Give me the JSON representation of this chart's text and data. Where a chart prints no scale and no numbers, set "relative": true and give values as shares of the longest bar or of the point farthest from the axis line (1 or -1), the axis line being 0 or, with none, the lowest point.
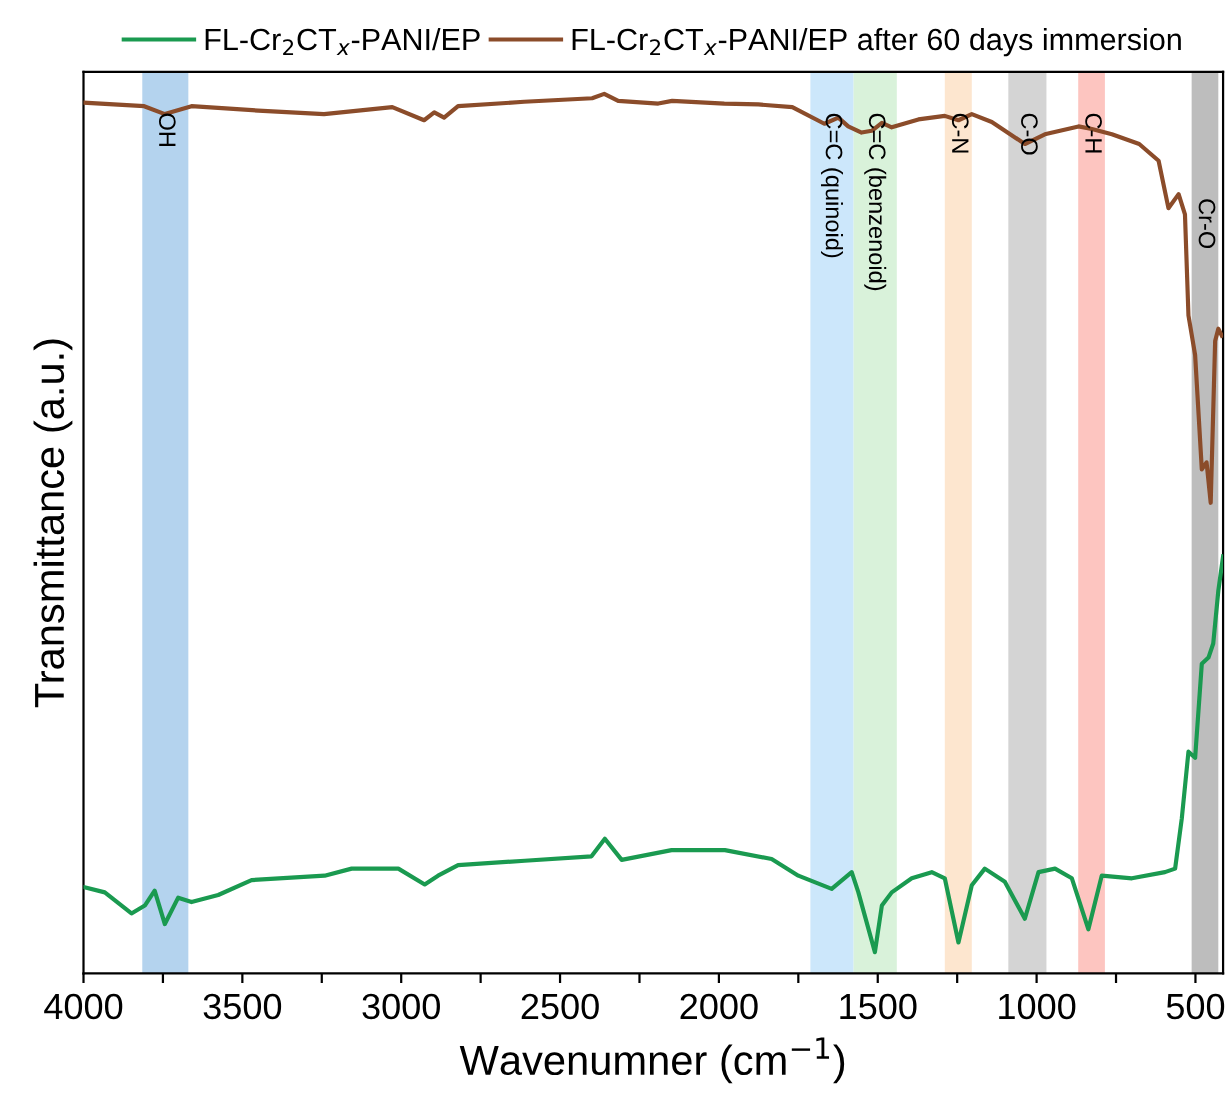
{
  "chart_data": {
    "type": "line",
    "xlabel": "Wavenumner (cm$^{−1}$)",
    "ylabel": "Transmittance (a.u.)",
    "relative": true,
    "legend": "top",
    "grid": false,
    "marker": "none",
    "line_style": "solid",
    "xlim": [
      4000,
      413
    ],
    "xticks": [
      4000,
      {
        "value": 3750,
        "label": null
      },
      3500,
      {
        "value": 3250,
        "label": null
      },
      3000,
      {
        "value": 2750,
        "label": null
      },
      2500,
      {
        "value": 2250,
        "label": null
      },
      2000,
      {
        "value": 1750,
        "label": null
      },
      1500,
      {
        "value": 1250,
        "label": null
      },
      1000,
      {
        "value": 750,
        "label": null
      },
      500
    ],
    "series": [
      {
        "name": "FL-Cr$_{2}$CT$_{x}$-PANI/EP",
        "color": "#1a9a50",
        "x": [
          4000,
          3933,
          3849,
          3807,
          3776,
          3744,
          3702,
          3660,
          3576,
          3471,
          3241,
          3156,
          3009,
          2926,
          2884,
          2821,
          2611,
          2401,
          2359,
          2306,
          2149,
          1981,
          1834,
          1750,
          1645,
          1582,
          1561,
          1509,
          1487,
          1456,
          1393,
          1330,
          1289,
          1246,
          1204,
          1163,
          1100,
          1037,
          994,
          942,
          889,
          837,
          795,
          700,
          596,
          564,
          543,
          522,
          501,
          480,
          459,
          444,
          428,
          413
        ],
        "values": [
          0.098,
          0.092,
          0.068,
          0.077,
          0.094,
          0.056,
          0.086,
          0.081,
          0.089,
          0.106,
          0.111,
          0.119,
          0.119,
          0.101,
          0.111,
          0.123,
          0.128,
          0.133,
          0.153,
          0.129,
          0.14,
          0.14,
          0.13,
          0.111,
          0.096,
          0.115,
          0.092,
          0.024,
          0.077,
          0.092,
          0.108,
          0.115,
          0.108,
          0.035,
          0.1,
          0.119,
          0.104,
          0.062,
          0.115,
          0.119,
          0.108,
          0.05,
          0.111,
          0.108,
          0.115,
          0.119,
          0.176,
          0.252,
          0.245,
          0.352,
          0.359,
          0.375,
          0.435,
          0.474
        ]
      },
      {
        "name": "FL-Cr$_{2}$CT$_{x}$-PANI/EP after 60 days immersion",
        "color": "#8b4c2a",
        "x": [
          4000,
          3809,
          3744,
          3660,
          3450,
          3243,
          3028,
          2928,
          2896,
          2865,
          2821,
          2613,
          2399,
          2361,
          2317,
          2191,
          2147,
          1983,
          1876,
          1769,
          1668,
          1624,
          1593,
          1551,
          1519,
          1487,
          1456,
          1372,
          1289,
          1246,
          1204,
          1141,
          1037,
          974,
          868,
          826,
          763,
          677,
          616,
          585,
          553,
          533,
          522,
          501,
          480,
          465,
          452,
          438,
          428,
          417
        ],
        "values": [
          0.99,
          0.986,
          0.977,
          0.986,
          0.981,
          0.977,
          0.985,
          0.97,
          0.979,
          0.973,
          0.986,
          0.991,
          0.995,
          1.0,
          0.992,
          0.989,
          0.992,
          0.989,
          0.988,
          0.985,
          0.966,
          0.973,
          0.963,
          0.956,
          0.958,
          0.967,
          0.962,
          0.971,
          0.975,
          0.97,
          0.977,
          0.968,
          0.943,
          0.954,
          0.963,
          0.96,
          0.954,
          0.943,
          0.924,
          0.87,
          0.886,
          0.863,
          0.748,
          0.703,
          0.573,
          0.581,
          0.535,
          0.719,
          0.733,
          0.725
        ]
      }
    ],
    "bands": [
      {
        "axis": "x",
        "from": 3815,
        "to": 3670,
        "label": "OH",
        "color": "#b4d3ee"
      },
      {
        "axis": "x",
        "from": 1712,
        "to": 1576,
        "label": "C=C (quinoid)",
        "color": "#cce7fb"
      },
      {
        "axis": "x",
        "from": 1576,
        "to": 1440,
        "label": "C=C (benzenoid)",
        "color": "#d9f2da"
      },
      {
        "axis": "x",
        "from": 1289,
        "to": 1204,
        "label": "C-N",
        "color": "#fde6cf"
      },
      {
        "axis": "x",
        "from": 1089,
        "to": 969,
        "label": "C-O",
        "color": "#d4d4d4"
      },
      {
        "axis": "x",
        "from": 869,
        "to": 785,
        "label": "C-H",
        "color": "#fdc5c0"
      },
      {
        "axis": "x",
        "from": 512,
        "to": 428,
        "label": "Cr-O",
        "color": "#bdbdbd"
      }
    ]
  }
}
